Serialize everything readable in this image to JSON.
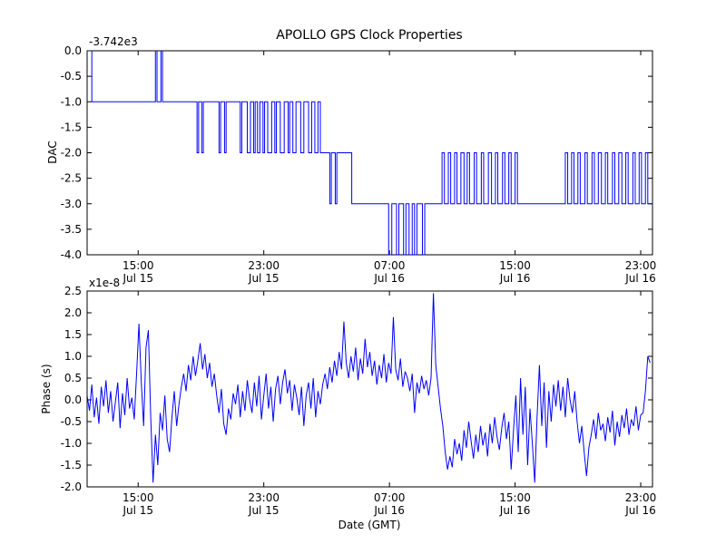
{
  "figure": {
    "title": "APOLLO GPS Clock Properties",
    "background": "#ffffff",
    "line_color": "#0000ff",
    "axis_color": "#000000"
  },
  "chart_data": [
    {
      "type": "line",
      "subplot": "top",
      "ylabel": "DAC",
      "xlabel": "",
      "y_offset_label": "-3.742e3",
      "y_offset": -3742,
      "ylim": [
        -4.0,
        0.0
      ],
      "ytick_values": [
        0,
        -0.5,
        -1,
        -1.5,
        -2,
        -2.5,
        -3,
        -3.5,
        -4
      ],
      "ytick_labels": [
        "0.0",
        "-0.5",
        "-1.0",
        "-1.5",
        "-2.0",
        "-2.5",
        "-3.0",
        "-3.5",
        "-4.0"
      ],
      "x_hours_range": [
        11.75,
        47.75
      ],
      "xticks": [
        {
          "hour": 15,
          "time": "15:00",
          "date": "Jul 15"
        },
        {
          "hour": 23,
          "time": "23:00",
          "date": "Jul 15"
        },
        {
          "hour": 31,
          "time": "07:00",
          "date": "Jul 16"
        },
        {
          "hour": 39,
          "time": "15:00",
          "date": "Jul 16"
        },
        {
          "hour": 47,
          "time": "23:00",
          "date": "Jul 16"
        }
      ],
      "grid": false,
      "step_points": [
        [
          11.75,
          0
        ],
        [
          12.05,
          -1
        ],
        [
          16.1,
          0
        ],
        [
          16.2,
          -1
        ],
        [
          16.45,
          0
        ],
        [
          16.55,
          -1
        ],
        [
          18.75,
          -2
        ],
        [
          18.85,
          -1
        ],
        [
          19.05,
          -2
        ],
        [
          19.15,
          -1
        ],
        [
          20.15,
          -2
        ],
        [
          20.25,
          -1
        ],
        [
          20.5,
          -2
        ],
        [
          20.6,
          -1
        ],
        [
          21.5,
          -2
        ],
        [
          21.6,
          -1
        ],
        [
          21.95,
          -2
        ],
        [
          22.15,
          -1
        ],
        [
          22.35,
          -2
        ],
        [
          22.45,
          -1
        ],
        [
          22.6,
          -2
        ],
        [
          22.75,
          -1
        ],
        [
          22.95,
          -2
        ],
        [
          23.05,
          -1
        ],
        [
          23.25,
          -2
        ],
        [
          23.5,
          -1
        ],
        [
          23.7,
          -2
        ],
        [
          23.8,
          -1
        ],
        [
          24.05,
          -2
        ],
        [
          24.3,
          -1
        ],
        [
          24.55,
          -2
        ],
        [
          24.65,
          -1
        ],
        [
          24.85,
          -2
        ],
        [
          25.05,
          -1
        ],
        [
          25.35,
          -2
        ],
        [
          25.55,
          -1
        ],
        [
          25.85,
          -2
        ],
        [
          26.05,
          -1
        ],
        [
          26.25,
          -2
        ],
        [
          26.45,
          -1
        ],
        [
          26.6,
          -2
        ],
        [
          27.2,
          -3
        ],
        [
          27.3,
          -2
        ],
        [
          27.55,
          -3
        ],
        [
          27.65,
          -2
        ],
        [
          28.6,
          -3
        ],
        [
          30.95,
          -4
        ],
        [
          31.15,
          -3
        ],
        [
          31.45,
          -4
        ],
        [
          31.6,
          -3
        ],
        [
          31.9,
          -4
        ],
        [
          32.05,
          -3
        ],
        [
          32.25,
          -4
        ],
        [
          32.45,
          -3
        ],
        [
          32.6,
          -4
        ],
        [
          32.75,
          -3
        ],
        [
          33.1,
          -4
        ],
        [
          33.25,
          -3
        ],
        [
          34.35,
          -2
        ],
        [
          34.5,
          -3
        ],
        [
          34.75,
          -2
        ],
        [
          34.9,
          -3
        ],
        [
          35.15,
          -2
        ],
        [
          35.3,
          -3
        ],
        [
          35.55,
          -2
        ],
        [
          35.75,
          -3
        ],
        [
          35.95,
          -2
        ],
        [
          36.1,
          -3
        ],
        [
          36.4,
          -2
        ],
        [
          36.55,
          -3
        ],
        [
          36.85,
          -2
        ],
        [
          37.0,
          -3
        ],
        [
          37.3,
          -2
        ],
        [
          37.5,
          -3
        ],
        [
          37.75,
          -2
        ],
        [
          37.9,
          -3
        ],
        [
          38.2,
          -2
        ],
        [
          38.35,
          -3
        ],
        [
          38.6,
          -2
        ],
        [
          38.75,
          -3
        ],
        [
          39.0,
          -2
        ],
        [
          39.15,
          -3
        ],
        [
          42.2,
          -2
        ],
        [
          42.35,
          -3
        ],
        [
          42.6,
          -2
        ],
        [
          42.75,
          -3
        ],
        [
          43.0,
          -2
        ],
        [
          43.15,
          -3
        ],
        [
          43.45,
          -2
        ],
        [
          43.6,
          -3
        ],
        [
          43.9,
          -2
        ],
        [
          44.05,
          -3
        ],
        [
          44.3,
          -2
        ],
        [
          44.5,
          -3
        ],
        [
          44.75,
          -2
        ],
        [
          44.9,
          -3
        ],
        [
          45.2,
          -2
        ],
        [
          45.35,
          -3
        ],
        [
          45.6,
          -2
        ],
        [
          45.8,
          -3
        ],
        [
          46.05,
          -2
        ],
        [
          46.2,
          -3
        ],
        [
          46.5,
          -2
        ],
        [
          46.65,
          -3
        ],
        [
          46.9,
          -2
        ],
        [
          47.05,
          -3
        ],
        [
          47.3,
          -2
        ],
        [
          47.45,
          -3
        ]
      ]
    },
    {
      "type": "line",
      "subplot": "bottom",
      "ylabel": "Phase (s)",
      "xlabel": "Date (GMT)",
      "scale_label": "x1e-8",
      "y_scale": 1e-08,
      "ylim": [
        -2.0,
        2.5
      ],
      "ytick_values": [
        2.5,
        2,
        1.5,
        1,
        0.5,
        0,
        -0.5,
        -1,
        -1.5,
        -2
      ],
      "ytick_labels": [
        "2.5",
        "2.0",
        "1.5",
        "1.0",
        "0.5",
        "0.0",
        "-0.5",
        "-1.0",
        "-1.5",
        "-2.0"
      ],
      "x_hours_range": [
        11.75,
        47.75
      ],
      "xticks": [
        {
          "hour": 15,
          "time": "15:00",
          "date": "Jul 15"
        },
        {
          "hour": 23,
          "time": "23:00",
          "date": "Jul 15"
        },
        {
          "hour": 31,
          "time": "07:00",
          "date": "Jul 16"
        },
        {
          "hour": 39,
          "time": "15:00",
          "date": "Jul 16"
        },
        {
          "hour": 47,
          "time": "23:00",
          "date": "Jul 16"
        }
      ],
      "grid": false,
      "x_start_hours": 11.75,
      "x_step_hours": 0.15,
      "values": [
        0.1,
        -0.25,
        0.35,
        -0.4,
        0.05,
        -0.55,
        0.3,
        -0.15,
        0.45,
        -0.3,
        0.2,
        -0.5,
        -0.05,
        0.4,
        -0.65,
        0.15,
        -0.35,
        0.5,
        -0.2,
        0.05,
        -0.45,
        0.6,
        1.75,
        0.4,
        -0.6,
        1.2,
        1.6,
        -0.4,
        -1.9,
        -0.8,
        -1.5,
        -0.3,
        -0.7,
        0.1,
        -0.9,
        -1.2,
        -0.4,
        0.2,
        -0.6,
        -0.1,
        0.3,
        0.6,
        0.2,
        0.8,
        0.45,
        1.0,
        0.55,
        0.9,
        1.3,
        0.7,
        1.05,
        0.5,
        0.85,
        0.3,
        0.6,
        0.1,
        -0.3,
        0.25,
        -0.55,
        -0.8,
        -0.2,
        -0.45,
        0.15,
        -0.1,
        0.35,
        -0.4,
        0.2,
        -0.25,
        0.45,
        0.0,
        -0.3,
        0.4,
        -0.15,
        0.55,
        -0.45,
        0.1,
        0.6,
        -0.2,
        0.3,
        -0.5,
        0.25,
        0.55,
        -0.1,
        0.4,
        0.7,
        0.15,
        0.45,
        -0.25,
        0.35,
        0.05,
        -0.35,
        0.3,
        -0.6,
        0.1,
        0.4,
        -0.2,
        0.5,
        -0.4,
        0.2,
        -0.1,
        0.35,
        0.6,
        0.25,
        0.75,
        0.4,
        0.9,
        0.55,
        1.1,
        0.7,
        1.8,
        0.85,
        0.5,
        1.0,
        0.65,
        1.2,
        0.45,
        0.95,
        0.6,
        1.4,
        0.75,
        1.1,
        0.55,
        0.9,
        0.35,
        0.8,
        0.5,
        1.05,
        0.4,
        0.85,
        0.6,
        1.9,
        0.7,
        0.45,
        0.95,
        0.3,
        0.65,
        0.5,
        0.2,
        0.6,
        -0.3,
        0.4,
        0.15,
        0.55,
        0.25,
        0.45,
        0.1,
        0.5,
        2.45,
        0.8,
        0.3,
        -0.2,
        -0.6,
        -1.2,
        -1.6,
        -1.3,
        -1.55,
        -0.9,
        -1.25,
        -1.0,
        -1.4,
        -0.7,
        -1.1,
        -0.5,
        -0.95,
        -1.35,
        -0.8,
        -1.2,
        -0.6,
        -1.05,
        -0.75,
        -1.3,
        -0.55,
        -1.0,
        -0.4,
        -0.85,
        -1.15,
        -0.65,
        -0.3,
        -0.9,
        -0.5,
        -1.6,
        -0.7,
        0.1,
        -1.2,
        0.5,
        -0.8,
        0.3,
        -1.5,
        -0.2,
        -1.0,
        -1.9,
        -0.4,
        0.8,
        -0.6,
        0.4,
        -1.1,
        0.2,
        -0.5,
        0.35,
        -0.15,
        0.45,
        -0.25,
        0.3,
        -0.4,
        0.5,
        0.0,
        -0.3,
        0.2,
        -0.5,
        -1.0,
        -0.6,
        -1.2,
        -1.75,
        -1.1,
        -0.8,
        -0.45,
        -0.9,
        -0.3,
        -0.7,
        -0.55,
        -0.95,
        -0.4,
        -0.75,
        -0.25,
        -1.05,
        -0.5,
        -0.85,
        -0.35,
        -0.65,
        -0.2,
        -0.8,
        -0.45,
        -0.6,
        -0.15,
        -0.7,
        -0.35,
        -0.3,
        0.2,
        1.0,
        0.85
      ]
    }
  ]
}
